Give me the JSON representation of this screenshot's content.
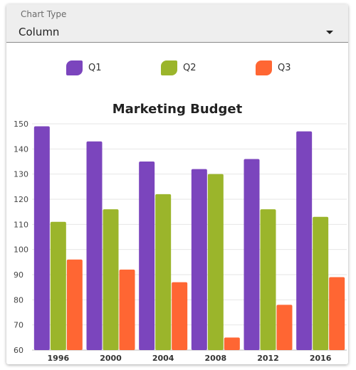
{
  "select": {
    "label": "Chart Type",
    "value": "Column"
  },
  "colors": {
    "Q1": "#7b45bd",
    "Q2": "#9bb52b",
    "Q3": "#ff6633",
    "grid": "#e6e6e6",
    "axis_text": "#444444"
  },
  "legend": [
    {
      "label": "Q1",
      "color": "#7b45bd"
    },
    {
      "label": "Q2",
      "color": "#9bb52b"
    },
    {
      "label": "Q3",
      "color": "#ff6633"
    }
  ],
  "chart_data": {
    "type": "bar",
    "title": "Marketing Budget",
    "categories": [
      "1996",
      "2000",
      "2004",
      "2008",
      "2012",
      "2016"
    ],
    "series": [
      {
        "name": "Q1",
        "values": [
          149,
          143,
          135,
          132,
          136,
          147
        ]
      },
      {
        "name": "Q2",
        "values": [
          111,
          116,
          122,
          130,
          116,
          113
        ]
      },
      {
        "name": "Q3",
        "values": [
          96,
          92,
          87,
          65,
          78,
          89
        ]
      }
    ],
    "ylim": [
      60,
      150
    ],
    "yticks": [
      "60",
      "70",
      "80",
      "90",
      "100",
      "110",
      "120",
      "130",
      "140",
      "150"
    ],
    "grid": true,
    "legend_position": "top"
  }
}
